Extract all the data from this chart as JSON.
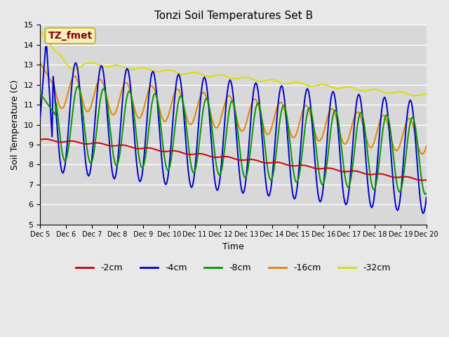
{
  "title": "Tonzi Soil Temperatures Set B",
  "xlabel": "Time",
  "ylabel": "Soil Temperature (C)",
  "ylim": [
    5.0,
    15.0
  ],
  "xlim": [
    0,
    360
  ],
  "fig_bg": "#e8e8e8",
  "ax_bg": "#d8d8d8",
  "legend_label": "TZ_fmet",
  "legend_box_facecolor": "#f5f0c0",
  "legend_box_edgecolor": "#c8b830",
  "legend_text_color": "#8b0000",
  "colors": {
    "neg2cm": "#cc0000",
    "neg4cm": "#0000cc",
    "neg8cm": "#009900",
    "neg16cm": "#dd8800",
    "neg32cm": "#dddd00"
  },
  "legend_items": [
    [
      "-2cm",
      "#cc0000"
    ],
    [
      "-4cm",
      "#0000cc"
    ],
    [
      "-8cm",
      "#009900"
    ],
    [
      "-16cm",
      "#dd8800"
    ],
    [
      "-32cm",
      "#dddd00"
    ]
  ],
  "xtick_labels": [
    "Dec 5",
    "Dec 6",
    "Dec 7",
    "Dec 8",
    "Dec 9",
    "Dec 10",
    "Dec 11",
    "Dec 12",
    "Dec 13",
    "Dec 14",
    "Dec 15",
    "Dec 16",
    "Dec 17",
    "Dec 18",
    "Dec 19",
    "Dec 20"
  ],
  "xtick_positions": [
    0,
    24,
    48,
    72,
    96,
    120,
    144,
    168,
    192,
    216,
    240,
    264,
    288,
    312,
    336,
    360
  ],
  "ytick_values": [
    5.0,
    6.0,
    7.0,
    8.0,
    9.0,
    10.0,
    11.0,
    12.0,
    13.0,
    14.0,
    15.0
  ]
}
